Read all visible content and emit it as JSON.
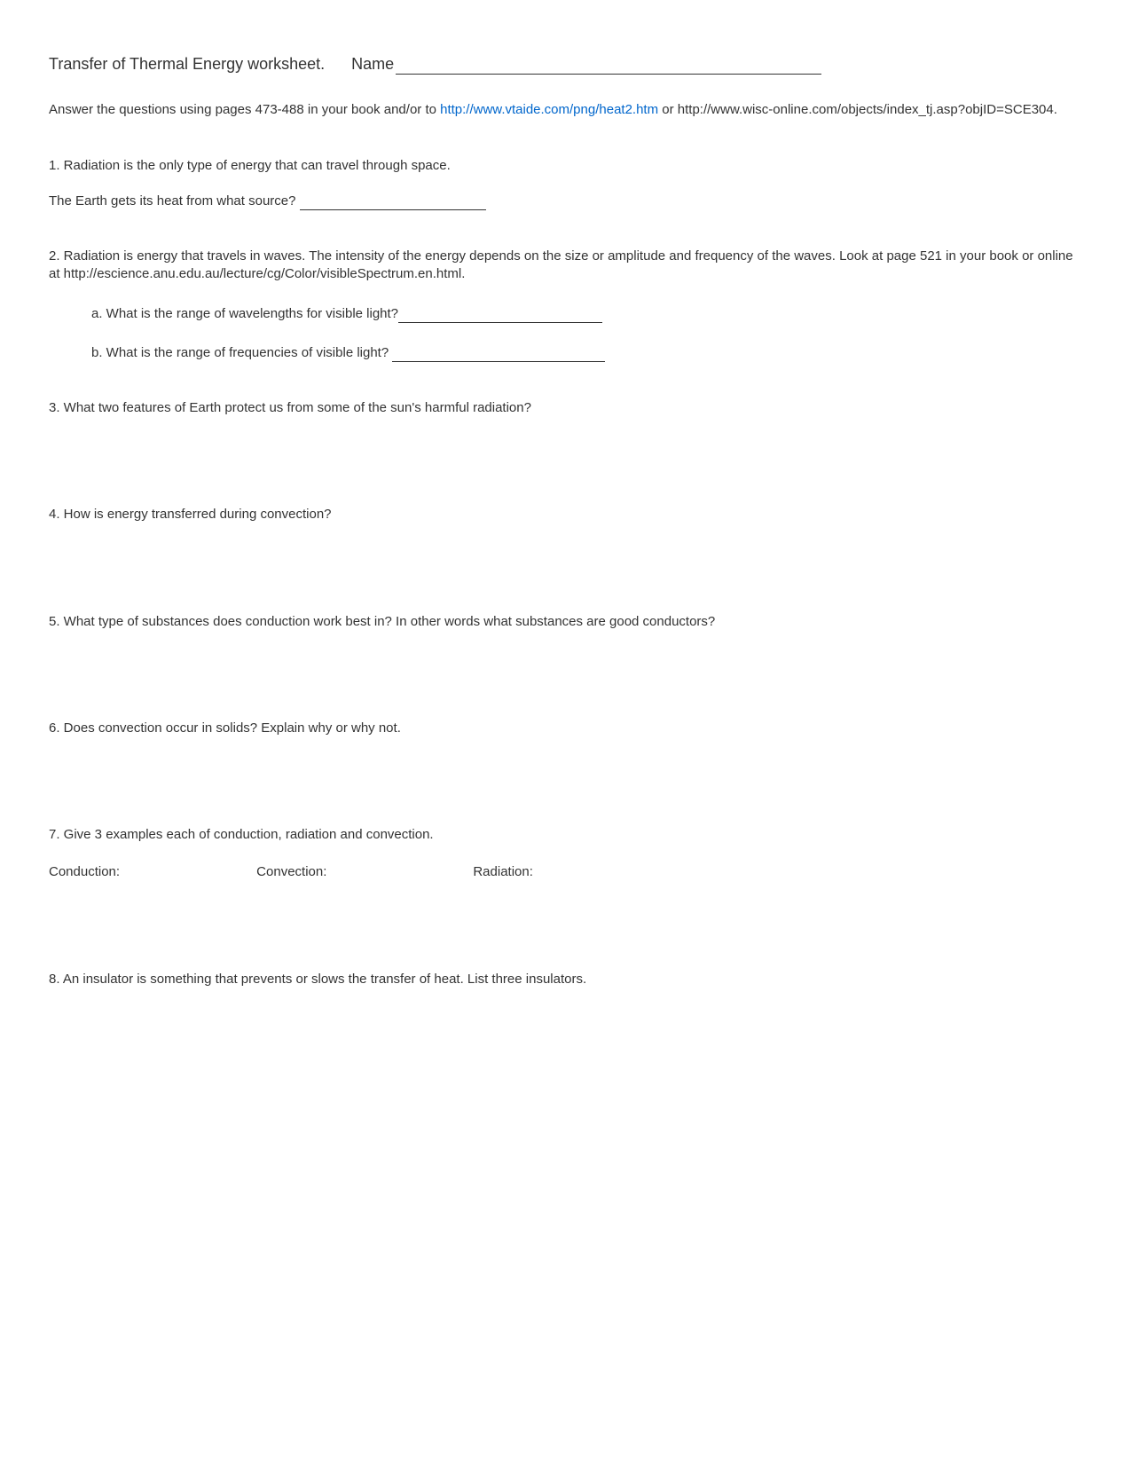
{
  "title": "Transfer of Thermal Energy worksheet.",
  "name_label": "Name",
  "intro_pre": "Answer the questions using pages 473-488 in your book and/or to ",
  "intro_link": "http://www.vtaide.com/png/heat2.htm",
  "intro_post": " or http://www.wisc-online.com/objects/index_tj.asp?objID=SCE304.",
  "q1_a": "1. Radiation is the only type of energy that can travel through space.",
  "q1_b": "The Earth gets its heat from what source? ",
  "q2_main": "2.  Radiation is energy that travels in waves.  The intensity of the energy depends on the size or amplitude and frequency of the waves.  Look at page 521 in your book or online at http://escience.anu.edu.au/lecture/cg/Color/visibleSpectrum.en.html.",
  "q2_a": "a.  What is the range of wavelengths for visible light?",
  "q2_b": "b.  What is the range of frequencies of visible light? ",
  "q3": "3.  What two features of Earth protect us from some of the sun's harmful radiation?",
  "q4": "4. How is energy transferred during convection?",
  "q5": "5. What type of substances does conduction work best in?  In other words what substances are good conductors?",
  "q6": "6. Does convection occur in solids?  Explain why or why not.",
  "q7": "7.  Give 3 examples each of conduction, radiation and convection.",
  "q7_col1": "Conduction:",
  "q7_col2": "Convection:",
  "q7_col3": "Radiation:",
  "q8": "8.  An insulator is something that prevents or slows the transfer of heat.  List three insulators."
}
